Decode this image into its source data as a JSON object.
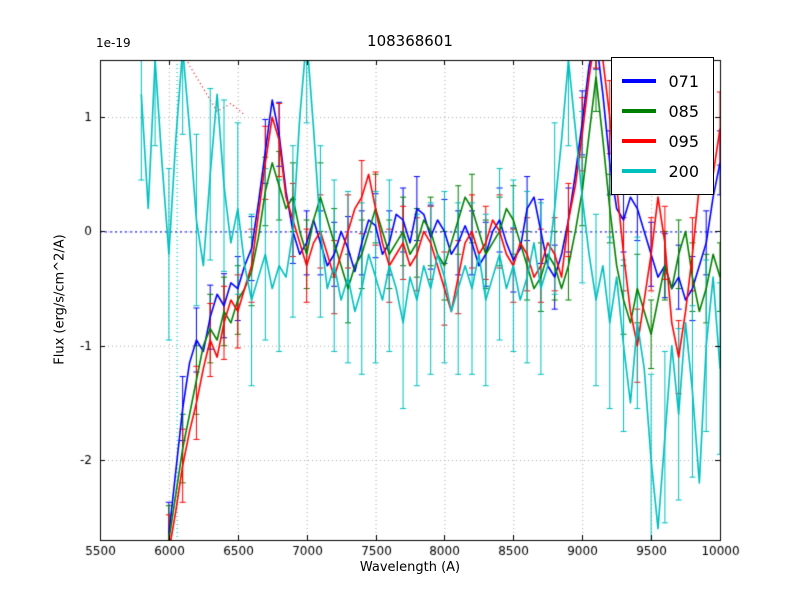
{
  "chart_data": {
    "type": "line",
    "title": "108368601",
    "xlabel": "Wavelength (A)",
    "ylabel": "Flux (erg/s/cm^2/A)",
    "offset_label": "1e-19",
    "xlim": [
      5500,
      10000
    ],
    "ylim": [
      -2.7,
      1.5
    ],
    "xticks": [
      5500,
      6000,
      6500,
      7000,
      7500,
      8000,
      8500,
      9000,
      9500,
      10000
    ],
    "yticks": [
      -2,
      -1,
      0,
      1
    ],
    "grid": true,
    "grid_color": "#aaaaaa",
    "legend_position": "top-right",
    "zero_line": {
      "y": 0,
      "color": "#0000ff",
      "style": "dotted"
    },
    "annotations": [
      {
        "type": "vline",
        "x": 6060,
        "color": "#00bfbf",
        "style": "dotted"
      },
      {
        "type": "curve",
        "color": "#ff0000",
        "style": "dotted",
        "x_start": 6050,
        "x_step": 100,
        "values": [
          1.7,
          1.45,
          1.25,
          1.05,
          1.12,
          1.02
        ]
      }
    ],
    "series": [
      {
        "name": "071",
        "color": "#0000ff",
        "x_start": 6000,
        "x_step": 50,
        "err": 0.28,
        "err_every": 2,
        "values": [
          -2.65,
          -2.1,
          -1.55,
          -1.15,
          -0.95,
          -1.05,
          -0.75,
          -0.55,
          -0.65,
          -0.45,
          -0.5,
          -0.3,
          -0.15,
          0.25,
          0.7,
          1.15,
          0.85,
          0.35,
          0.0,
          -0.2,
          -0.1,
          0.1,
          -0.1,
          -0.3,
          -0.2,
          0.0,
          -0.15,
          -0.35,
          -0.1,
          0.1,
          0.05,
          -0.2,
          -0.1,
          0.15,
          0.1,
          -0.1,
          0.2,
          0.15,
          -0.05,
          0.1,
          0.0,
          -0.2,
          -0.1,
          0.05,
          -0.1,
          -0.3,
          -0.2,
          0.0,
          0.1,
          -0.1,
          -0.25,
          -0.15,
          0.2,
          0.3,
          0.0,
          -0.3,
          -0.4,
          -0.2,
          0.1,
          0.5,
          0.95,
          1.45,
          1.7,
          1.2,
          0.6,
          0.2,
          0.1,
          0.3,
          0.2,
          0.0,
          -0.2,
          -0.4,
          -0.3,
          -0.5,
          -0.4,
          -0.6,
          -0.5,
          -0.3,
          -0.1,
          0.3,
          0.6
        ]
      },
      {
        "name": "085",
        "color": "#008000",
        "x_start": 6000,
        "x_step": 50,
        "err": 0.3,
        "err_every": 2,
        "values": [
          -2.7,
          -2.3,
          -1.9,
          -1.6,
          -1.3,
          -1.0,
          -0.85,
          -0.95,
          -0.7,
          -0.8,
          -0.6,
          -0.5,
          -0.35,
          -0.05,
          0.35,
          0.6,
          0.4,
          0.2,
          0.3,
          0.0,
          -0.2,
          0.1,
          0.3,
          0.1,
          -0.1,
          -0.3,
          -0.5,
          -0.3,
          -0.2,
          0.0,
          0.2,
          0.0,
          -0.2,
          -0.1,
          0.0,
          -0.2,
          -0.1,
          0.1,
          0.0,
          -0.2,
          -0.3,
          -0.1,
          0.1,
          0.3,
          0.2,
          0.0,
          -0.2,
          -0.1,
          0.0,
          0.2,
          0.1,
          -0.1,
          -0.3,
          -0.5,
          -0.4,
          -0.2,
          -0.3,
          -0.5,
          -0.3,
          0.0,
          0.35,
          0.85,
          1.35,
          0.8,
          0.2,
          -0.3,
          -0.6,
          -0.8,
          -0.5,
          -0.7,
          -0.9,
          -0.6,
          -0.3,
          -0.5,
          -0.2,
          0.0,
          -0.4,
          -0.7,
          -0.5,
          -0.2,
          -0.4
        ]
      },
      {
        "name": "095",
        "color": "#ff0000",
        "x_start": 6000,
        "x_step": 50,
        "err": 0.32,
        "err_every": 2,
        "values": [
          -2.8,
          -2.45,
          -2.05,
          -1.75,
          -1.5,
          -1.2,
          -0.95,
          -1.1,
          -0.8,
          -0.6,
          -0.7,
          -0.5,
          -0.3,
          0.15,
          0.6,
          1.0,
          0.8,
          0.3,
          0.1,
          -0.1,
          -0.3,
          -0.1,
          0.0,
          -0.2,
          -0.4,
          -0.2,
          0.0,
          0.2,
          0.3,
          0.5,
          0.2,
          -0.1,
          -0.3,
          -0.2,
          -0.1,
          -0.3,
          -0.2,
          0.0,
          -0.1,
          -0.3,
          -0.5,
          -0.7,
          -0.4,
          -0.1,
          0.0,
          -0.2,
          -0.1,
          0.1,
          0.0,
          -0.2,
          -0.3,
          -0.1,
          -0.2,
          -0.4,
          -0.3,
          -0.1,
          -0.2,
          -0.4,
          0.1,
          0.4,
          0.85,
          1.35,
          1.75,
          1.5,
          1.0,
          0.4,
          -0.2,
          -0.7,
          -1.0,
          -0.6,
          -0.2,
          0.3,
          -0.1,
          -0.8,
          -1.1,
          -0.7,
          -0.2,
          0.4,
          0.9,
          0.5,
          0.9
        ]
      },
      {
        "name": "200",
        "color": "#00bfbf",
        "x_start": 5800,
        "x_step": 50,
        "err": 0.75,
        "err_every": 2,
        "values": [
          1.2,
          0.2,
          1.5,
          0.6,
          -0.2,
          0.8,
          1.6,
          0.9,
          0.1,
          -0.3,
          0.5,
          1.2,
          0.4,
          -0.1,
          0.2,
          -0.3,
          -0.6,
          -0.4,
          -0.2,
          -0.5,
          -0.3,
          -0.4,
          0.0,
          1.0,
          1.7,
          0.9,
          0.0,
          -0.5,
          -0.3,
          -0.6,
          -0.4,
          -0.7,
          -0.5,
          -0.2,
          -0.4,
          -0.6,
          -0.3,
          -0.5,
          -0.8,
          -0.4,
          -0.6,
          -0.3,
          -0.5,
          -0.2,
          -0.4,
          -0.7,
          -0.5,
          -0.3,
          -0.5,
          -0.2,
          -0.6,
          -0.4,
          -0.2,
          -0.5,
          -0.3,
          -0.6,
          -0.4,
          -0.1,
          -0.5,
          -0.3,
          0.2,
          0.8,
          1.5,
          0.9,
          0.3,
          -0.2,
          -0.6,
          -0.3,
          -0.8,
          -0.4,
          -1.0,
          -1.5,
          -0.8,
          -1.2,
          -2.0,
          -2.6,
          -1.8,
          -1.0,
          -1.6,
          -0.8,
          -1.4,
          -2.2,
          -1.0,
          -0.4,
          -1.2
        ]
      }
    ]
  }
}
